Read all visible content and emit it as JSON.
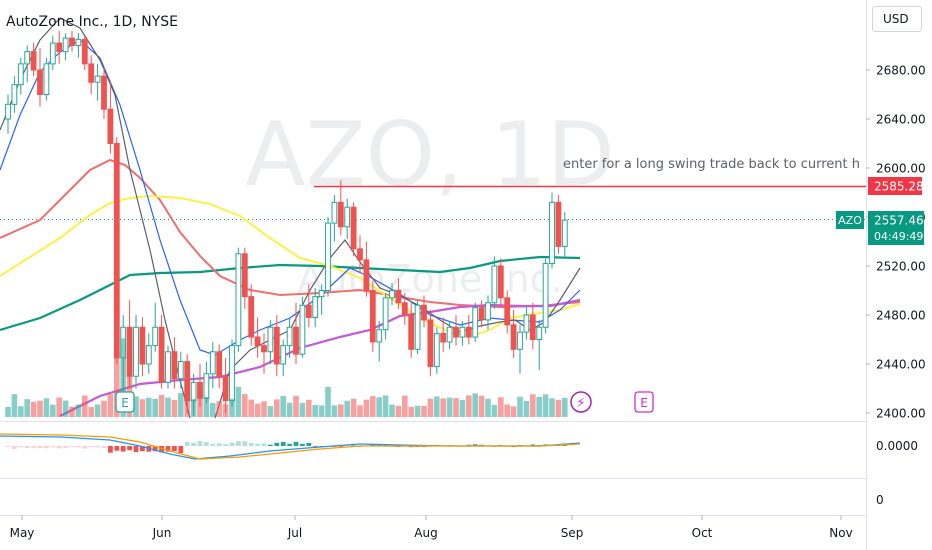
{
  "header": {
    "title": "AutoZone Inc., 1D, NYSE"
  },
  "watermark": {
    "symbol": "AZO, 1D",
    "name": "AutoZone Inc."
  },
  "currency_button": "USD",
  "annotation": {
    "text": "enter for a long swing trade back to current h",
    "level": 2590
  },
  "colors": {
    "up": "#26a69a",
    "down": "#ef5350",
    "red_line": "#f23645",
    "price_tag": "#089981",
    "event_purple": "#d32ad8"
  },
  "chart_data": {
    "type": "candlestick",
    "symbol": "AZO",
    "interval": "1D",
    "exchange": "NYSE",
    "price_axis": {
      "ticks": [
        2400,
        2440,
        2480,
        2520,
        2560,
        2600,
        2640,
        2680
      ],
      "tick_labels": [
        "2400.00",
        "2440.00",
        "2480.00",
        "2520.00",
        "2560.00",
        "2600.00",
        "2640.00",
        "2680.00"
      ]
    },
    "time_axis": {
      "labels": [
        "May",
        "Jun",
        "Jul",
        "Aug",
        "Sep",
        "Oct",
        "Nov"
      ]
    },
    "indicator_axis": {
      "ticks": [
        "0.0000",
        "0"
      ]
    },
    "last_price": {
      "symbol": "AZO",
      "value": "2557.46",
      "countdown": "04:49:49"
    },
    "horizontal_line": {
      "value": "2585.28"
    },
    "candles": [
      {
        "t": "May 2",
        "o": 2640,
        "h": 2660,
        "l": 2628,
        "c": 2652
      },
      {
        "t": "May 3",
        "o": 2652,
        "h": 2675,
        "l": 2645,
        "c": 2668
      },
      {
        "t": "May 4",
        "o": 2668,
        "h": 2690,
        "l": 2660,
        "c": 2685
      },
      {
        "t": "May 5",
        "o": 2685,
        "h": 2700,
        "l": 2670,
        "c": 2695
      },
      {
        "t": "May 6",
        "o": 2695,
        "h": 2702,
        "l": 2675,
        "c": 2680
      },
      {
        "t": "May 9",
        "o": 2680,
        "h": 2698,
        "l": 2650,
        "c": 2660
      },
      {
        "t": "May 10",
        "o": 2660,
        "h": 2690,
        "l": 2655,
        "c": 2685
      },
      {
        "t": "May 11",
        "o": 2685,
        "h": 2708,
        "l": 2680,
        "c": 2702
      },
      {
        "t": "May 12",
        "o": 2702,
        "h": 2712,
        "l": 2685,
        "c": 2695
      },
      {
        "t": "May 13",
        "o": 2695,
        "h": 2710,
        "l": 2688,
        "c": 2706
      },
      {
        "t": "May 16",
        "o": 2706,
        "h": 2712,
        "l": 2695,
        "c": 2700
      },
      {
        "t": "May 17",
        "o": 2700,
        "h": 2710,
        "l": 2690,
        "c": 2705
      },
      {
        "t": "May 18",
        "o": 2705,
        "h": 2708,
        "l": 2680,
        "c": 2685
      },
      {
        "t": "May 19",
        "o": 2685,
        "h": 2692,
        "l": 2660,
        "c": 2670
      },
      {
        "t": "May 20",
        "o": 2670,
        "h": 2685,
        "l": 2655,
        "c": 2675
      },
      {
        "t": "May 23",
        "o": 2675,
        "h": 2682,
        "l": 2640,
        "c": 2648
      },
      {
        "t": "May 24",
        "o": 2648,
        "h": 2670,
        "l": 2612,
        "c": 2620
      },
      {
        "t": "May 25",
        "o": 2620,
        "h": 2625,
        "l": 2440,
        "c": 2445
      },
      {
        "t": "May 26",
        "o": 2445,
        "h": 2480,
        "l": 2405,
        "c": 2470
      },
      {
        "t": "May 27",
        "o": 2470,
        "h": 2492,
        "l": 2422,
        "c": 2430
      },
      {
        "t": "May 31",
        "o": 2430,
        "h": 2480,
        "l": 2420,
        "c": 2470
      },
      {
        "t": "Jun 1",
        "o": 2470,
        "h": 2478,
        "l": 2430,
        "c": 2440
      },
      {
        "t": "Jun 2",
        "o": 2440,
        "h": 2465,
        "l": 2432,
        "c": 2455
      },
      {
        "t": "Jun 3",
        "o": 2455,
        "h": 2490,
        "l": 2450,
        "c": 2470
      },
      {
        "t": "Jun 6",
        "o": 2470,
        "h": 2480,
        "l": 2420,
        "c": 2425
      },
      {
        "t": "Jun 7",
        "o": 2425,
        "h": 2455,
        "l": 2420,
        "c": 2450
      },
      {
        "t": "Jun 8",
        "o": 2450,
        "h": 2462,
        "l": 2420,
        "c": 2428
      },
      {
        "t": "Jun 9",
        "o": 2428,
        "h": 2450,
        "l": 2420,
        "c": 2442
      },
      {
        "t": "Jun 10",
        "o": 2442,
        "h": 2448,
        "l": 2400,
        "c": 2410
      },
      {
        "t": "Jun 13",
        "o": 2410,
        "h": 2432,
        "l": 2398,
        "c": 2425
      },
      {
        "t": "Jun 14",
        "o": 2425,
        "h": 2440,
        "l": 2405,
        "c": 2412
      },
      {
        "t": "Jun 15",
        "o": 2412,
        "h": 2442,
        "l": 2408,
        "c": 2432
      },
      {
        "t": "Jun 16",
        "o": 2432,
        "h": 2458,
        "l": 2420,
        "c": 2450
      },
      {
        "t": "Jun 17",
        "o": 2450,
        "h": 2456,
        "l": 2420,
        "c": 2430
      },
      {
        "t": "Jun 21",
        "o": 2430,
        "h": 2445,
        "l": 2400,
        "c": 2410
      },
      {
        "t": "Jun 22",
        "o": 2410,
        "h": 2460,
        "l": 2405,
        "c": 2455
      },
      {
        "t": "Jun 23",
        "o": 2455,
        "h": 2535,
        "l": 2450,
        "c": 2530
      },
      {
        "t": "Jun 24",
        "o": 2530,
        "h": 2535,
        "l": 2485,
        "c": 2495
      },
      {
        "t": "Jun 27",
        "o": 2495,
        "h": 2505,
        "l": 2455,
        "c": 2462
      },
      {
        "t": "Jun 28",
        "o": 2462,
        "h": 2478,
        "l": 2445,
        "c": 2455
      },
      {
        "t": "Jun 29",
        "o": 2455,
        "h": 2465,
        "l": 2432,
        "c": 2450
      },
      {
        "t": "Jun 30",
        "o": 2450,
        "h": 2476,
        "l": 2440,
        "c": 2470
      },
      {
        "t": "Jul 1",
        "o": 2470,
        "h": 2480,
        "l": 2430,
        "c": 2440
      },
      {
        "t": "Jul 5",
        "o": 2440,
        "h": 2460,
        "l": 2430,
        "c": 2455
      },
      {
        "t": "Jul 6",
        "o": 2455,
        "h": 2478,
        "l": 2445,
        "c": 2470
      },
      {
        "t": "Jul 7",
        "o": 2470,
        "h": 2490,
        "l": 2440,
        "c": 2448
      },
      {
        "t": "Jul 8",
        "o": 2448,
        "h": 2495,
        "l": 2445,
        "c": 2488
      },
      {
        "t": "Jul 11",
        "o": 2488,
        "h": 2505,
        "l": 2470,
        "c": 2478
      },
      {
        "t": "Jul 12",
        "o": 2478,
        "h": 2502,
        "l": 2470,
        "c": 2495
      },
      {
        "t": "Jul 13",
        "o": 2495,
        "h": 2505,
        "l": 2480,
        "c": 2500
      },
      {
        "t": "Jul 14",
        "o": 2500,
        "h": 2560,
        "l": 2495,
        "c": 2555
      },
      {
        "t": "Jul 15",
        "o": 2555,
        "h": 2578,
        "l": 2540,
        "c": 2572
      },
      {
        "t": "Jul 18",
        "o": 2572,
        "h": 2590,
        "l": 2545,
        "c": 2552
      },
      {
        "t": "Jul 19",
        "o": 2552,
        "h": 2575,
        "l": 2542,
        "c": 2568
      },
      {
        "t": "Jul 20",
        "o": 2568,
        "h": 2572,
        "l": 2528,
        "c": 2534
      },
      {
        "t": "Jul 21",
        "o": 2534,
        "h": 2545,
        "l": 2515,
        "c": 2525
      },
      {
        "t": "Jul 22",
        "o": 2525,
        "h": 2540,
        "l": 2495,
        "c": 2500
      },
      {
        "t": "Jul 25",
        "o": 2500,
        "h": 2508,
        "l": 2450,
        "c": 2458
      },
      {
        "t": "Jul 26",
        "o": 2458,
        "h": 2475,
        "l": 2442,
        "c": 2468
      },
      {
        "t": "Jul 27",
        "o": 2468,
        "h": 2498,
        "l": 2460,
        "c": 2494
      },
      {
        "t": "Jul 28",
        "o": 2494,
        "h": 2506,
        "l": 2488,
        "c": 2500
      },
      {
        "t": "Jul 29",
        "o": 2500,
        "h": 2510,
        "l": 2485,
        "c": 2490
      },
      {
        "t": "Aug 1",
        "o": 2490,
        "h": 2498,
        "l": 2472,
        "c": 2480
      },
      {
        "t": "Aug 2",
        "o": 2480,
        "h": 2490,
        "l": 2445,
        "c": 2452
      },
      {
        "t": "Aug 3",
        "o": 2452,
        "h": 2492,
        "l": 2448,
        "c": 2488
      },
      {
        "t": "Aug 4",
        "o": 2488,
        "h": 2496,
        "l": 2470,
        "c": 2476
      },
      {
        "t": "Aug 5",
        "o": 2476,
        "h": 2484,
        "l": 2430,
        "c": 2438
      },
      {
        "t": "Aug 8",
        "o": 2438,
        "h": 2470,
        "l": 2432,
        "c": 2465
      },
      {
        "t": "Aug 9",
        "o": 2465,
        "h": 2478,
        "l": 2450,
        "c": 2458
      },
      {
        "t": "Aug 10",
        "o": 2458,
        "h": 2475,
        "l": 2452,
        "c": 2470
      },
      {
        "t": "Aug 11",
        "o": 2470,
        "h": 2480,
        "l": 2455,
        "c": 2462
      },
      {
        "t": "Aug 12",
        "o": 2462,
        "h": 2475,
        "l": 2455,
        "c": 2470
      },
      {
        "t": "Aug 15",
        "o": 2470,
        "h": 2480,
        "l": 2456,
        "c": 2462
      },
      {
        "t": "Aug 16",
        "o": 2462,
        "h": 2490,
        "l": 2458,
        "c": 2486
      },
      {
        "t": "Aug 17",
        "o": 2486,
        "h": 2492,
        "l": 2470,
        "c": 2476
      },
      {
        "t": "Aug 18",
        "o": 2476,
        "h": 2496,
        "l": 2468,
        "c": 2490
      },
      {
        "t": "Aug 19",
        "o": 2490,
        "h": 2528,
        "l": 2485,
        "c": 2520
      },
      {
        "t": "Aug 22",
        "o": 2520,
        "h": 2526,
        "l": 2488,
        "c": 2494
      },
      {
        "t": "Aug 23",
        "o": 2494,
        "h": 2500,
        "l": 2465,
        "c": 2472
      },
      {
        "t": "Aug 24",
        "o": 2472,
        "h": 2484,
        "l": 2445,
        "c": 2452
      },
      {
        "t": "Aug 25",
        "o": 2452,
        "h": 2472,
        "l": 2432,
        "c": 2466
      },
      {
        "t": "Aug 26",
        "o": 2466,
        "h": 2488,
        "l": 2460,
        "c": 2480
      },
      {
        "t": "Aug 29",
        "o": 2480,
        "h": 2490,
        "l": 2452,
        "c": 2460
      },
      {
        "t": "Aug 30",
        "o": 2460,
        "h": 2476,
        "l": 2435,
        "c": 2470
      },
      {
        "t": "Aug 31",
        "o": 2470,
        "h": 2526,
        "l": 2465,
        "c": 2522
      },
      {
        "t": "Sep 1",
        "o": 2522,
        "h": 2580,
        "l": 2518,
        "c": 2572
      },
      {
        "t": "Sep 2",
        "o": 2572,
        "h": 2578,
        "l": 2530,
        "c": 2536
      },
      {
        "t": "Sep 6",
        "o": 2536,
        "h": 2564,
        "l": 2528,
        "c": 2557.46
      }
    ]
  }
}
